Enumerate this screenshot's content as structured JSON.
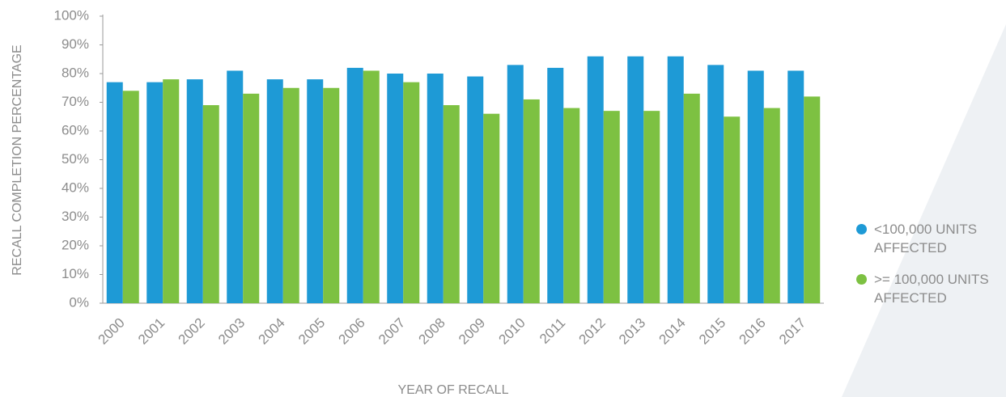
{
  "chart_data": {
    "type": "bar",
    "y_axis_label": "RECALL COMPLETION PERCENTAGE",
    "x_axis_label": "YEAR OF RECALL",
    "categories": [
      "2000",
      "2001",
      "2002",
      "2003",
      "2004",
      "2005",
      "2006",
      "2007",
      "2008",
      "2009",
      "2010",
      "2011",
      "2012",
      "2013",
      "2014",
      "2015",
      "2016",
      "2017"
    ],
    "series": [
      {
        "name": "<100,000 UNITS AFFECTED",
        "color": "#1e9ad6",
        "values": [
          77,
          77,
          78,
          81,
          78,
          78,
          82,
          80,
          80,
          79,
          83,
          82,
          86,
          86,
          86,
          83,
          81,
          81
        ]
      },
      {
        "name": ">= 100,000 UNITS AFFECTED",
        "color": "#7dc142",
        "values": [
          74,
          78,
          69,
          73,
          75,
          75,
          81,
          77,
          69,
          66,
          71,
          68,
          67,
          67,
          73,
          65,
          68,
          72
        ]
      }
    ],
    "ylim": [
      0,
      100
    ],
    "yticks": [
      {
        "value": 0,
        "label": "0%"
      },
      {
        "value": 10,
        "label": "10%"
      },
      {
        "value": 20,
        "label": "20%"
      },
      {
        "value": 30,
        "label": "30%"
      },
      {
        "value": 40,
        "label": "40%"
      },
      {
        "value": 50,
        "label": "50%"
      },
      {
        "value": 60,
        "label": "60%"
      },
      {
        "value": 70,
        "label": "70%"
      },
      {
        "value": 80,
        "label": "80%"
      },
      {
        "value": 90,
        "label": "90%"
      },
      {
        "value": 100,
        "label": "100%"
      }
    ],
    "legend": "right"
  }
}
